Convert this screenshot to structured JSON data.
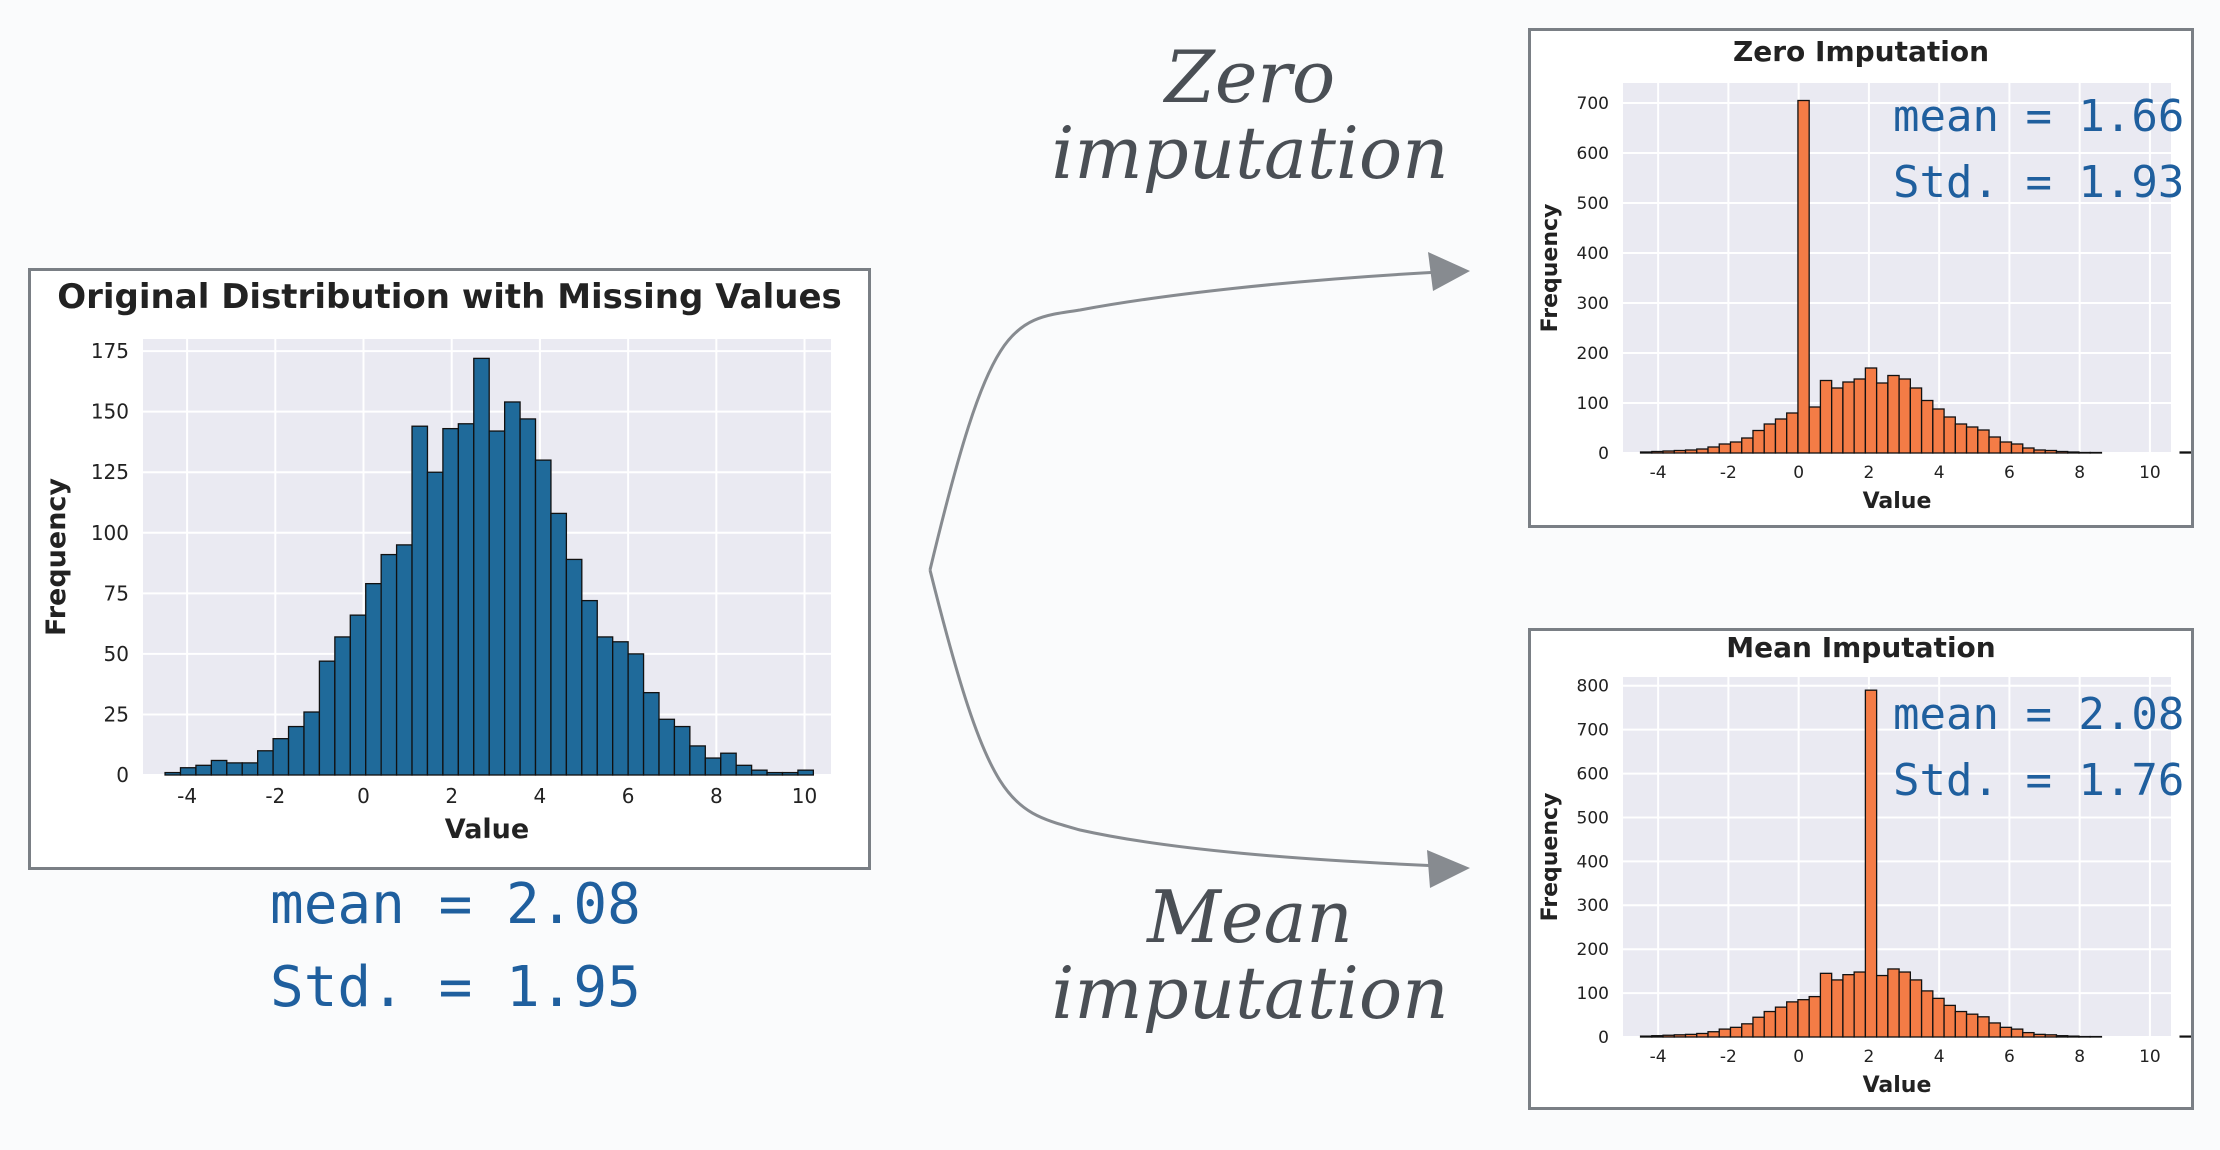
{
  "labels": {
    "zero_arrow_line1": "Zero",
    "zero_arrow_line2": "imputation",
    "mean_arrow_line1": "Mean",
    "mean_arrow_line2": "imputation"
  },
  "stats": {
    "original_mean": "mean = 2.08",
    "original_std": "Std. = 1.95",
    "zero_mean": "mean = 1.66",
    "zero_std": "Std. = 1.93",
    "mean_mean": "mean = 2.08",
    "mean_std": "Std. = 1.76"
  },
  "colors": {
    "original_bar": "#1f6a9a",
    "imputed_bar": "#f47c46",
    "stat_text": "#1f5f9e",
    "arrow": "#878b90"
  },
  "chart_data": [
    {
      "id": "original",
      "type": "bar",
      "title": "Original Distribution with Missing Values",
      "xlabel": "Value",
      "ylabel": "Frequency",
      "xlim": [
        -5,
        10.6
      ],
      "ylim": [
        0,
        180
      ],
      "xticks": [
        -4,
        -2,
        0,
        2,
        4,
        6,
        8,
        10
      ],
      "yticks": [
        0,
        25,
        50,
        75,
        100,
        125,
        150,
        175
      ],
      "bin_width": 0.35,
      "bin_start": -4.5,
      "values": [
        1,
        3,
        4,
        6,
        5,
        5,
        10,
        15,
        20,
        26,
        47,
        57,
        66,
        79,
        91,
        95,
        144,
        125,
        143,
        145,
        172,
        142,
        154,
        147,
        130,
        108,
        89,
        72,
        57,
        55,
        50,
        34,
        23,
        20,
        12,
        7,
        9,
        4,
        2,
        1,
        1,
        2,
        0,
        0,
        0,
        0,
        0,
        2
      ],
      "grid": true
    },
    {
      "id": "zero",
      "type": "bar",
      "title": "Zero Imputation",
      "xlabel": "Value",
      "ylabel": "Frequency",
      "xlim": [
        -5,
        10.6
      ],
      "ylim": [
        0,
        740
      ],
      "xticks": [
        -4,
        -2,
        0,
        2,
        4,
        6,
        8,
        10
      ],
      "yticks": [
        0,
        100,
        200,
        300,
        400,
        500,
        600,
        700
      ],
      "bin_width": 0.32,
      "bin_start": -4.5,
      "values": [
        2,
        3,
        4,
        5,
        6,
        8,
        12,
        18,
        22,
        30,
        45,
        58,
        68,
        80,
        705,
        92,
        145,
        130,
        142,
        148,
        170,
        140,
        155,
        148,
        130,
        105,
        88,
        72,
        58,
        52,
        46,
        32,
        22,
        18,
        10,
        6,
        5,
        3,
        2,
        1,
        1,
        0,
        0,
        0,
        0,
        0,
        0,
        0,
        2
      ],
      "grid": true
    },
    {
      "id": "mean",
      "type": "bar",
      "title": "Mean Imputation",
      "xlabel": "Value",
      "ylabel": "Frequency",
      "xlim": [
        -5,
        10.6
      ],
      "ylim": [
        0,
        820
      ],
      "xticks": [
        -4,
        -2,
        0,
        2,
        4,
        6,
        8,
        10
      ],
      "yticks": [
        0,
        100,
        200,
        300,
        400,
        500,
        600,
        700,
        800
      ],
      "bin_width": 0.32,
      "bin_start": -4.5,
      "values": [
        2,
        3,
        4,
        5,
        6,
        8,
        12,
        18,
        22,
        30,
        45,
        58,
        68,
        80,
        85,
        92,
        145,
        130,
        142,
        148,
        790,
        140,
        155,
        148,
        130,
        105,
        88,
        72,
        58,
        52,
        46,
        32,
        22,
        18,
        10,
        6,
        5,
        3,
        2,
        1,
        1,
        0,
        0,
        0,
        0,
        0,
        0,
        0,
        2
      ],
      "grid": true
    }
  ]
}
